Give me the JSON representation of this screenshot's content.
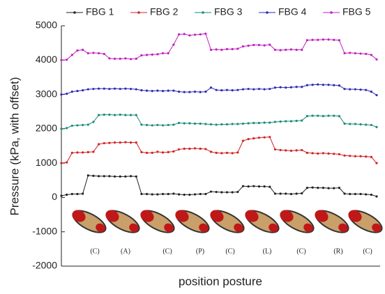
{
  "chart_data": {
    "type": "line",
    "y_label": "Pressure (kPa, with offset)",
    "x_label": "position posture",
    "ylim": [
      -2000,
      5000
    ],
    "yticks": [
      -2000,
      -1000,
      0,
      1000,
      2000,
      3000,
      4000,
      5000
    ],
    "legend": "top",
    "annotations": [
      "(C)",
      "(A)",
      "(C)",
      "(P)",
      "(C)",
      "(L)",
      "(C)",
      "(R)",
      "(C)"
    ],
    "series": [
      {
        "name": "FBG 1",
        "color": "#222222",
        "values": [
          50,
          80,
          100,
          100,
          110,
          640,
          630,
          620,
          620,
          620,
          610,
          610,
          610,
          620,
          610,
          100,
          100,
          90,
          90,
          100,
          100,
          110,
          90,
          80,
          80,
          90,
          100,
          100,
          170,
          160,
          150,
          150,
          150,
          160,
          330,
          320,
          330,
          320,
          320,
          310,
          110,
          110,
          110,
          100,
          110,
          120,
          280,
          290,
          280,
          280,
          270,
          270,
          280,
          110,
          100,
          100,
          100,
          90,
          80,
          30
        ]
      },
      {
        "name": "FBG 2",
        "color": "#d42020",
        "values": [
          1000,
          1020,
          1300,
          1310,
          1310,
          1320,
          1330,
          1550,
          1580,
          1590,
          1600,
          1600,
          1610,
          1600,
          1600,
          1320,
          1300,
          1300,
          1330,
          1310,
          1320,
          1340,
          1400,
          1420,
          1420,
          1430,
          1420,
          1410,
          1330,
          1300,
          1290,
          1300,
          1290,
          1310,
          1650,
          1700,
          1720,
          1740,
          1750,
          1760,
          1400,
          1380,
          1370,
          1360,
          1370,
          1380,
          1300,
          1290,
          1280,
          1290,
          1280,
          1270,
          1260,
          1220,
          1210,
          1200,
          1200,
          1190,
          1180,
          1000
        ]
      },
      {
        "name": "FBG 3",
        "color": "#1a8a7a",
        "values": [
          2000,
          2020,
          2090,
          2100,
          2110,
          2120,
          2200,
          2400,
          2410,
          2410,
          2400,
          2410,
          2400,
          2400,
          2400,
          2120,
          2110,
          2100,
          2110,
          2100,
          2110,
          2120,
          2170,
          2160,
          2160,
          2150,
          2150,
          2140,
          2130,
          2120,
          2130,
          2130,
          2140,
          2140,
          2150,
          2160,
          2170,
          2170,
          2180,
          2180,
          2200,
          2210,
          2220,
          2220,
          2230,
          2240,
          2370,
          2380,
          2380,
          2370,
          2380,
          2380,
          2370,
          2150,
          2140,
          2140,
          2130,
          2120,
          2110,
          2050
        ]
      },
      {
        "name": "FBG 4",
        "color": "#2a2ab8",
        "values": [
          3000,
          3020,
          3080,
          3100,
          3120,
          3150,
          3160,
          3170,
          3170,
          3160,
          3170,
          3160,
          3170,
          3160,
          3150,
          3120,
          3110,
          3100,
          3110,
          3100,
          3110,
          3110,
          3080,
          3070,
          3070,
          3080,
          3070,
          3080,
          3200,
          3130,
          3120,
          3130,
          3120,
          3130,
          3150,
          3160,
          3150,
          3160,
          3150,
          3160,
          3200,
          3210,
          3200,
          3210,
          3220,
          3220,
          3270,
          3280,
          3290,
          3280,
          3280,
          3270,
          3260,
          3160,
          3150,
          3150,
          3140,
          3130,
          3080,
          2980
        ]
      },
      {
        "name": "FBG 5",
        "color": "#c020c0",
        "values": [
          4000,
          4010,
          4150,
          4280,
          4300,
          4200,
          4210,
          4200,
          4180,
          4050,
          4040,
          4040,
          4050,
          4030,
          4040,
          4140,
          4150,
          4160,
          4170,
          4200,
          4200,
          4450,
          4750,
          4760,
          4720,
          4740,
          4750,
          4770,
          4300,
          4310,
          4300,
          4320,
          4320,
          4330,
          4400,
          4420,
          4440,
          4440,
          4430,
          4450,
          4300,
          4290,
          4300,
          4310,
          4300,
          4300,
          4580,
          4590,
          4590,
          4600,
          4600,
          4590,
          4580,
          4200,
          4210,
          4200,
          4190,
          4180,
          4150,
          4020
        ]
      }
    ]
  }
}
